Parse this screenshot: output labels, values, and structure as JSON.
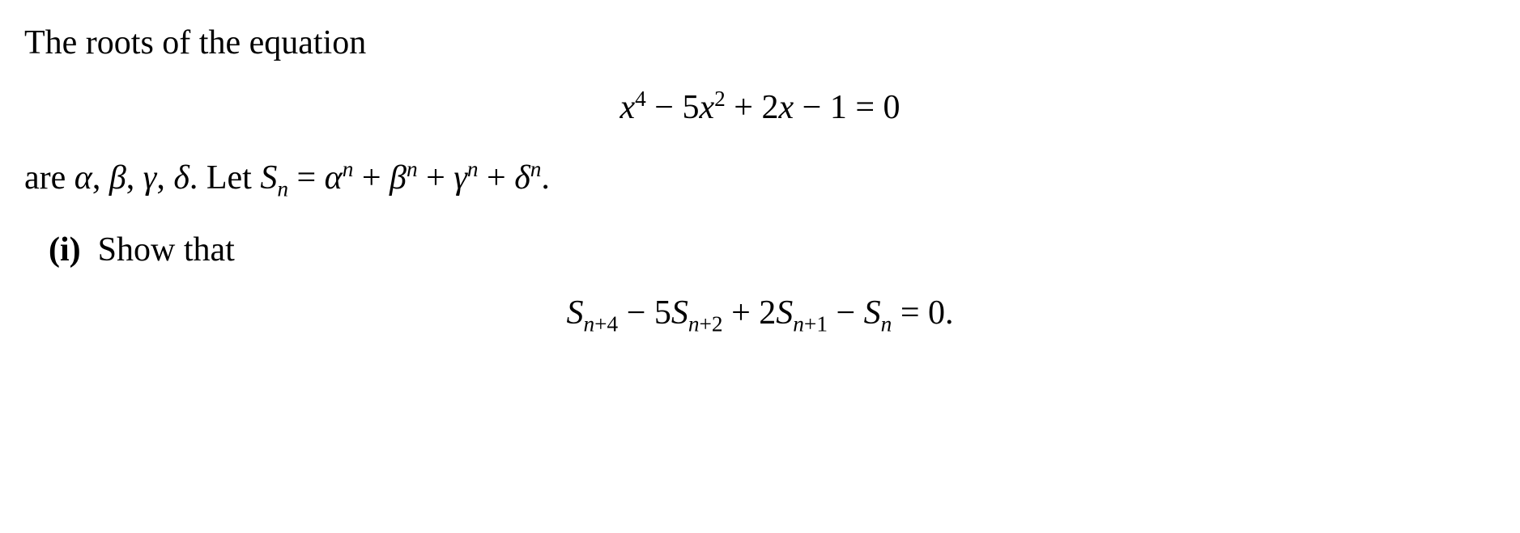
{
  "problem": {
    "intro": "The roots of the equation",
    "equation1": "x⁴ − 5x² + 2x − 1 = 0",
    "roots_line_prefix": "are ",
    "roots": "α, β, γ, δ",
    "let_prefix": ". Let ",
    "sn_def_lhs": "Sₙ",
    "sn_def_eq": " = ",
    "sn_def_rhs": "αⁿ + βⁿ + γⁿ + δⁿ",
    "sn_def_period": ".",
    "part_i_label": "(i)",
    "part_i_text": "Show that",
    "recurrence": "Sₙ₊₄ − 5Sₙ₊₂ + 2Sₙ₊₁ − Sₙ = 0."
  },
  "style": {
    "font_family": "Times New Roman",
    "font_size_pt": 32,
    "text_color": "#000000",
    "background_color": "#ffffff"
  }
}
